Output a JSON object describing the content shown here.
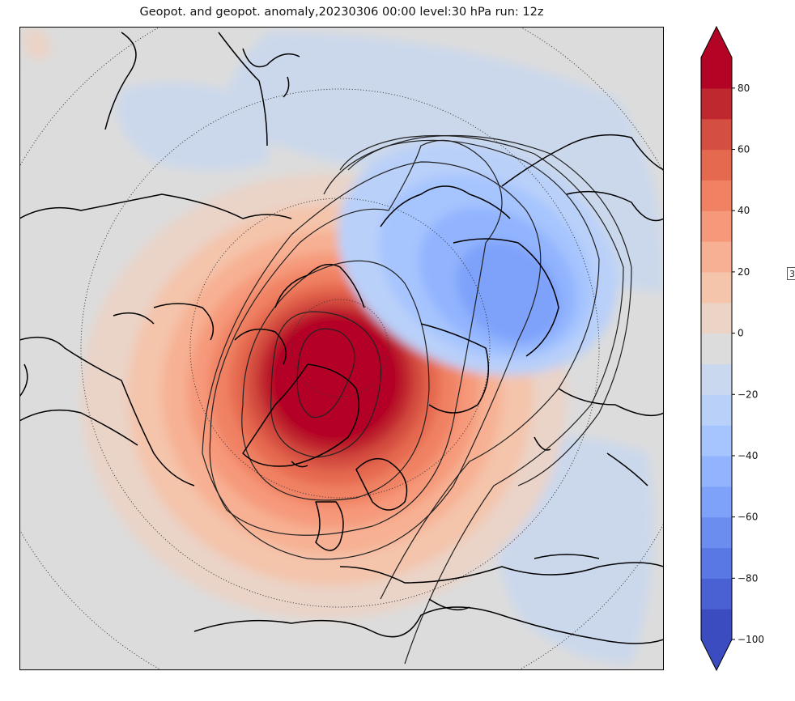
{
  "title": "Geopot. and geopot. anomaly,20230306 00:00 level:30 hPa run: 12z",
  "colorbar": {
    "ticks": [
      "80",
      "60",
      "40",
      "20",
      "0",
      "−20",
      "−40",
      "−60",
      "−80",
      "−100"
    ],
    "range": [
      -100,
      90
    ],
    "extend": "both",
    "colors": [
      "#3b4cc0",
      "#4961d2",
      "#5a78e4",
      "#6b8df0",
      "#7ea1fa",
      "#92b4fe",
      "#a6c4fe",
      "#b9d0f9",
      "#cad8ef",
      "#dddcdc",
      "#ebd3c6",
      "#f4c4ab",
      "#f7b093",
      "#f6997a",
      "#f08263",
      "#e5694f",
      "#d44e41",
      "#c0282f",
      "#b40426"
    ]
  },
  "side_tag": "3"
}
